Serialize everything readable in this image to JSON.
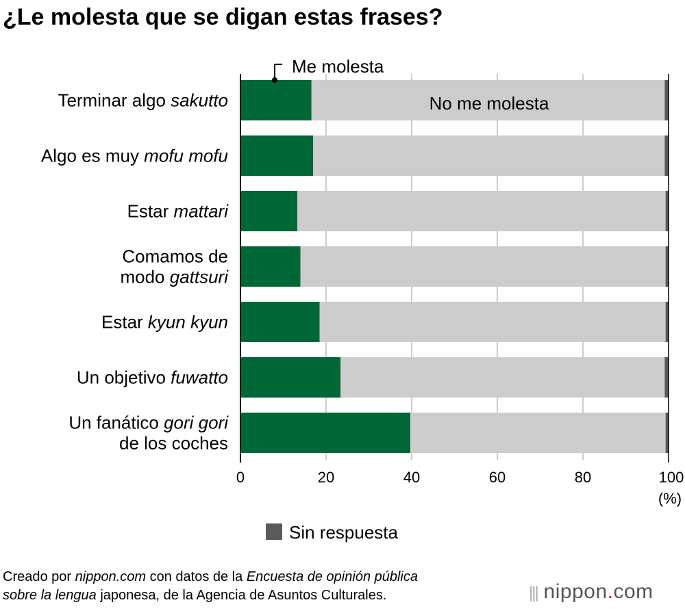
{
  "title": "¿Le molesta que se digan estas frases?",
  "chart_data": {
    "type": "bar",
    "orientation": "horizontal",
    "stacked": true,
    "categories": [
      {
        "plain": "Terminar algo ",
        "italic": "sakutto"
      },
      {
        "plain": "Algo es muy ",
        "italic": "mofu mofu"
      },
      {
        "plain": "Estar ",
        "italic": "mattari"
      },
      {
        "plain": "Comamos de\nmodo ",
        "italic": "gattsuri"
      },
      {
        "plain": "Estar ",
        "italic": "kyun kyun"
      },
      {
        "plain": "Un objetivo ",
        "italic": "fuwatto"
      },
      {
        "plain": "Un fanático ",
        "italic": "gori gori",
        "after": "de los coches"
      }
    ],
    "series": [
      {
        "name": "Me molesta",
        "color": "#006837",
        "values": [
          16.6,
          17.0,
          13.3,
          14.0,
          18.5,
          23.4,
          39.7
        ]
      },
      {
        "name": "No me molesta",
        "color": "#cccccc",
        "values": [
          82.5,
          82.1,
          86.0,
          85.3,
          80.8,
          75.7,
          59.6
        ]
      },
      {
        "name": "Sin respuesta",
        "color": "#5a5a5a",
        "values": [
          0.9,
          0.9,
          0.7,
          0.7,
          0.7,
          0.9,
          0.7
        ]
      }
    ],
    "xlim": [
      0,
      100
    ],
    "xticks": [
      "0",
      "20",
      "40",
      "60",
      "80",
      "100"
    ],
    "xunit": "(%)",
    "grid": true,
    "legend": "bottom"
  },
  "footer": {
    "line1_a": "Creado por ",
    "line1_b": "nippon.com",
    "line1_c": " con datos de la ",
    "line1_d": "Encuesta de opinión pública",
    "line2_a": "sobre la lengua",
    "line2_b": " japonesa, de la Agencia de Asuntos Culturales."
  },
  "logo": {
    "text_a": "nippon",
    "dot": ".",
    "text_b": "com"
  }
}
